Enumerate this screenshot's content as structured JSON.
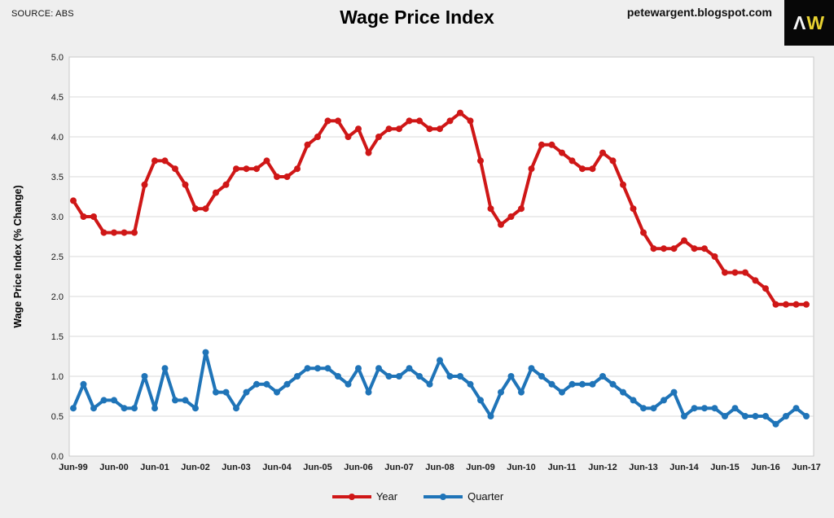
{
  "header": {
    "source_label": "SOURCE: ABS",
    "title": "Wage Price Index",
    "blog_url": "petewargent.blogspot.com",
    "logo": {
      "part1": "Λ",
      "part2": "W"
    }
  },
  "chart_data": {
    "type": "line",
    "title": "Wage Price Index",
    "ylabel": "Wage Price Index (% Change)",
    "ylim": [
      0.0,
      5.0
    ],
    "ytick_step": 0.5,
    "grid": "horizontal",
    "legend_position": "bottom",
    "x_ticks": [
      "Jun-99",
      "Jun-00",
      "Jun-01",
      "Jun-02",
      "Jun-03",
      "Jun-04",
      "Jun-05",
      "Jun-06",
      "Jun-07",
      "Jun-08",
      "Jun-09",
      "Jun-10",
      "Jun-11",
      "Jun-12",
      "Jun-13",
      "Jun-14",
      "Jun-15",
      "Jun-16",
      "Jun-17"
    ],
    "points_per_tick_interval": 4,
    "series": [
      {
        "name": "Year",
        "color": "#cf1717",
        "values": [
          3.2,
          3.0,
          3.0,
          2.8,
          2.8,
          2.8,
          2.8,
          3.4,
          3.7,
          3.7,
          3.6,
          3.4,
          3.1,
          3.1,
          3.3,
          3.4,
          3.6,
          3.6,
          3.6,
          3.7,
          3.5,
          3.5,
          3.6,
          3.9,
          4.0,
          4.2,
          4.2,
          4.0,
          4.1,
          3.8,
          4.0,
          4.1,
          4.1,
          4.2,
          4.2,
          4.1,
          4.1,
          4.2,
          4.3,
          4.2,
          3.7,
          3.1,
          2.9,
          3.0,
          3.1,
          3.6,
          3.9,
          3.9,
          3.8,
          3.7,
          3.6,
          3.6,
          3.8,
          3.7,
          3.4,
          3.1,
          2.8,
          2.6,
          2.6,
          2.6,
          2.7,
          2.6,
          2.6,
          2.5,
          2.3,
          2.3,
          2.3,
          2.2,
          2.1,
          1.9,
          1.9,
          1.9,
          1.9
        ]
      },
      {
        "name": "Quarter",
        "color": "#1f74b8",
        "values": [
          0.6,
          0.9,
          0.6,
          0.7,
          0.7,
          0.6,
          0.6,
          1.0,
          0.6,
          1.1,
          0.7,
          0.7,
          0.6,
          1.3,
          0.8,
          0.8,
          0.6,
          0.8,
          0.9,
          0.9,
          0.8,
          0.9,
          1.0,
          1.1,
          1.1,
          1.1,
          1.0,
          0.9,
          1.1,
          0.8,
          1.1,
          1.0,
          1.0,
          1.1,
          1.0,
          0.9,
          1.2,
          1.0,
          1.0,
          0.9,
          0.7,
          0.5,
          0.8,
          1.0,
          0.8,
          1.1,
          1.0,
          0.9,
          0.8,
          0.9,
          0.9,
          0.9,
          1.0,
          0.9,
          0.8,
          0.7,
          0.6,
          0.6,
          0.7,
          0.8,
          0.5,
          0.6,
          0.6,
          0.6,
          0.5,
          0.6,
          0.5,
          0.5,
          0.5,
          0.4,
          0.5,
          0.6,
          0.5
        ]
      }
    ]
  }
}
